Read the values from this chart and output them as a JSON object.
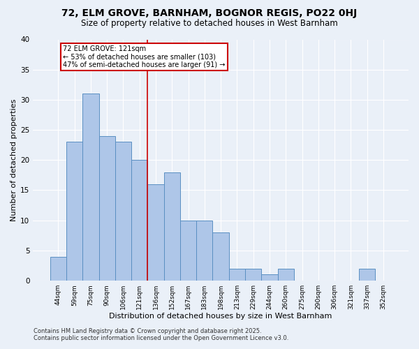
{
  "title1": "72, ELM GROVE, BARNHAM, BOGNOR REGIS, PO22 0HJ",
  "title2": "Size of property relative to detached houses in West Barnham",
  "xlabel": "Distribution of detached houses by size in West Barnham",
  "ylabel": "Number of detached properties",
  "categories": [
    "44sqm",
    "59sqm",
    "75sqm",
    "90sqm",
    "106sqm",
    "121sqm",
    "136sqm",
    "152sqm",
    "167sqm",
    "183sqm",
    "198sqm",
    "213sqm",
    "229sqm",
    "244sqm",
    "260sqm",
    "275sqm",
    "290sqm",
    "306sqm",
    "321sqm",
    "337sqm",
    "352sqm"
  ],
  "values": [
    4,
    23,
    31,
    24,
    23,
    20,
    16,
    18,
    10,
    10,
    8,
    2,
    2,
    1,
    2,
    0,
    0,
    0,
    0,
    2,
    0
  ],
  "bar_color": "#aec6e8",
  "bar_edge_color": "#5a8fc2",
  "redline_index": 5,
  "annotation_line1": "72 ELM GROVE: 121sqm",
  "annotation_line2": "← 53% of detached houses are smaller (103)",
  "annotation_line3": "47% of semi-detached houses are larger (91) →",
  "annotation_box_color": "#ffffff",
  "annotation_box_edge": "#cc0000",
  "ylim": [
    0,
    40
  ],
  "yticks": [
    0,
    5,
    10,
    15,
    20,
    25,
    30,
    35,
    40
  ],
  "bg_color": "#eaf0f8",
  "plot_bg_color": "#eaf0f8",
  "grid_color": "#ffffff",
  "footnote1": "Contains HM Land Registry data © Crown copyright and database right 2025.",
  "footnote2": "Contains public sector information licensed under the Open Government Licence v3.0.",
  "title1_fontsize": 10,
  "title2_fontsize": 8.5,
  "xlabel_fontsize": 8,
  "ylabel_fontsize": 8
}
